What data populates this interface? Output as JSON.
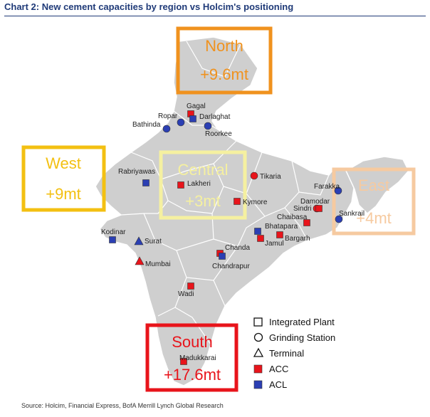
{
  "title": "Chart 2: New cement capacities by region vs Holcim's positioning",
  "source": "Source: Holcim, Financial Express, BofA Merrill Lynch Global Research",
  "colors": {
    "acc": "#e8141b",
    "acl": "#2b3fb3",
    "north": "#f0921e",
    "west": "#f3c012",
    "central": "#f5f0a0",
    "east": "#f6caa0",
    "south": "#e8141b",
    "title": "#1f3a78",
    "land": "#cccccc"
  },
  "regions": [
    {
      "name": "North",
      "capacity": "+9.6mt"
    },
    {
      "name": "West",
      "capacity": "+9mt"
    },
    {
      "name": "Central",
      "capacity": "+3mt"
    },
    {
      "name": "East",
      "capacity": "+4mt"
    },
    {
      "name": "South",
      "capacity": "+17.6mt"
    }
  ],
  "legend": {
    "shapes": [
      {
        "label": "Integrated Plant",
        "shape": "square"
      },
      {
        "label": "Grinding Station",
        "shape": "circle"
      },
      {
        "label": "Terminal",
        "shape": "triangle"
      }
    ],
    "companies": [
      {
        "label": "ACC",
        "color": "#e8141b"
      },
      {
        "label": "ACL",
        "color": "#2b3fb3"
      }
    ]
  },
  "cities": [
    {
      "name": "Gagal",
      "company": "ACC",
      "type": "square"
    },
    {
      "name": "Darlaghat",
      "company": "ACL",
      "type": "square"
    },
    {
      "name": "Ropar",
      "company": "ACL",
      "type": "circle"
    },
    {
      "name": "Bathinda",
      "company": "ACL",
      "type": "circle"
    },
    {
      "name": "Roorkee",
      "company": "ACL",
      "type": "circle"
    },
    {
      "name": "Rabriyawas",
      "company": "ACL",
      "type": "square"
    },
    {
      "name": "Lakheri",
      "company": "ACC",
      "type": "square"
    },
    {
      "name": "Tikaria",
      "company": "ACC",
      "type": "circle"
    },
    {
      "name": "Kymore",
      "company": "ACC",
      "type": "square"
    },
    {
      "name": "Farakka",
      "company": "ACL",
      "type": "circle"
    },
    {
      "name": "Damodar",
      "company": "ACC",
      "type": "circle"
    },
    {
      "name": "Sindri",
      "company": "ACC",
      "type": "square"
    },
    {
      "name": "Sankrail",
      "company": "ACL",
      "type": "circle"
    },
    {
      "name": "Chaibasa",
      "company": "ACC",
      "type": "square"
    },
    {
      "name": "Bhatapara",
      "company": "ACL",
      "type": "square"
    },
    {
      "name": "Jamul",
      "company": "ACC",
      "type": "square"
    },
    {
      "name": "Bargarh",
      "company": "ACC",
      "type": "square"
    },
    {
      "name": "Kodinar",
      "company": "ACL",
      "type": "square"
    },
    {
      "name": "Surat",
      "company": "ACL",
      "type": "triangle"
    },
    {
      "name": "Mumbai",
      "company": "ACC",
      "type": "triangle"
    },
    {
      "name": "Chanda",
      "company": "ACC",
      "type": "square"
    },
    {
      "name": "Chandrapur",
      "company": "ACL",
      "type": "square"
    },
    {
      "name": "Wadi",
      "company": "ACC",
      "type": "square"
    },
    {
      "name": "Madukkarai",
      "company": "ACC",
      "type": "square"
    }
  ]
}
